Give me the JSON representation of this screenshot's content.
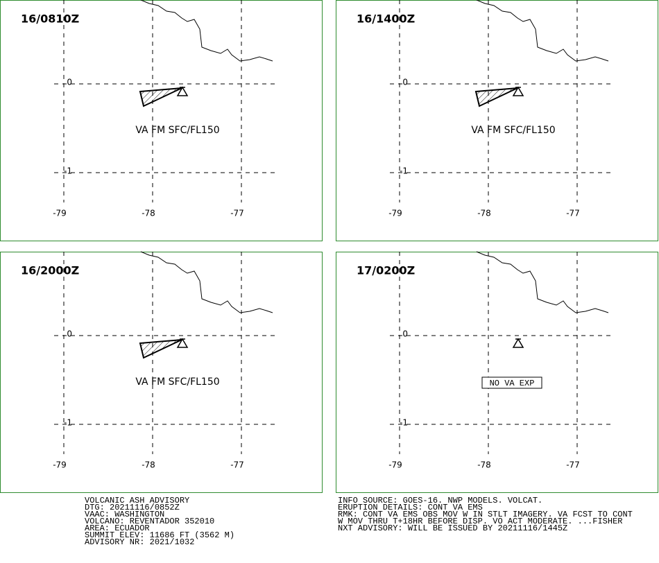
{
  "panels": [
    {
      "time": "16/0810Z",
      "label": "VA FM SFC/FL150",
      "ash": true
    },
    {
      "time": "16/1400Z",
      "label": "VA FM SFC/FL150",
      "ash": true
    },
    {
      "time": "16/2000Z",
      "label": "VA FM SFC/FL150",
      "ash": true
    },
    {
      "time": "17/0200Z",
      "label": "NO VA EXP",
      "ash": false
    }
  ],
  "grid": {
    "lat_labels": [
      "0",
      "-1"
    ],
    "lon_labels": [
      "-79",
      "-78",
      "-77"
    ]
  },
  "advisory_left": [
    "VOLCANIC ASH ADVISORY",
    "DTG: 20211116/0852Z",
    "VAAC: WASHINGTON",
    "VOLCANO: REVENTADOR 352010",
    "AREA: ECUADOR",
    "SUMMIT ELEV: 11686 FT (3562 M)",
    "ADVISORY NR: 2021/1032"
  ],
  "advisory_right": [
    "INFO SOURCE: GOES-16. NWP MODELS. VOLCAT.",
    "ERUPTION DETAILS: CONT VA EMS",
    "RMK: CONT VA EMS OBS MOV W IN STLT IMAGERY. VA FCST TO CONT",
    "W MOV THRU T+18HR BEFORE DISP. VO ACT MODERATE. ...FISHER",
    "NXT ADVISORY: WILL BE ISSUED BY 20211116/1445Z"
  ]
}
